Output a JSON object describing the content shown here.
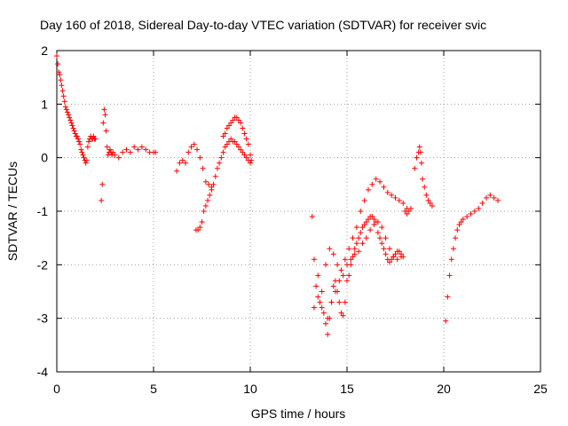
{
  "chart_data": {
    "type": "scatter",
    "title": "Day 160 of 2018, Sidereal Day-to-day VTEC variation (SDTVAR) for receiver svic",
    "xlabel": "GPS time / hours",
    "ylabel": "SDTVAR / TECUs",
    "xlim": [
      0,
      25
    ],
    "ylim": [
      -4,
      2
    ],
    "xticks": [
      "0",
      "5",
      "10",
      "15",
      "20",
      "25"
    ],
    "yticks": [
      "-4",
      "-3",
      "-2",
      "-1",
      "0",
      "1",
      "2"
    ],
    "grid": true,
    "marker": "+",
    "color": "#ff0000",
    "series": [
      {
        "name": "SDTVAR",
        "x": [
          0.0,
          0.05,
          0.1,
          0.15,
          0.2,
          0.25,
          0.3,
          0.35,
          0.4,
          0.45,
          0.5,
          0.55,
          0.6,
          0.65,
          0.7,
          0.75,
          0.8,
          0.85,
          0.9,
          0.95,
          1.0,
          1.05,
          1.1,
          1.15,
          1.2,
          1.25,
          1.3,
          1.35,
          1.4,
          1.45,
          1.5,
          1.55,
          1.6,
          1.65,
          1.7,
          1.75,
          1.8,
          1.85,
          1.9,
          1.95,
          2.0,
          2.3,
          2.35,
          2.4,
          2.45,
          2.5,
          2.55,
          2.6,
          2.65,
          2.7,
          2.75,
          2.8,
          2.85,
          2.9,
          3.0,
          3.2,
          3.4,
          3.6,
          3.8,
          4.0,
          4.2,
          4.4,
          4.6,
          4.8,
          5.0,
          5.1,
          6.2,
          6.35,
          6.5,
          6.65,
          6.8,
          6.95,
          7.1,
          7.25,
          7.4,
          7.55,
          7.7,
          7.85,
          8.0,
          7.2,
          7.3,
          7.4,
          7.5,
          7.6,
          7.7,
          7.8,
          7.9,
          8.0,
          8.1,
          8.2,
          8.3,
          8.4,
          8.5,
          8.6,
          8.7,
          8.8,
          8.9,
          9.0,
          9.1,
          9.2,
          9.3,
          9.4,
          9.5,
          9.6,
          9.7,
          9.8,
          9.9,
          10.0,
          10.05,
          8.6,
          8.7,
          8.8,
          8.9,
          9.0,
          9.1,
          9.2,
          9.3,
          9.4,
          9.5,
          9.6,
          9.7,
          9.8,
          9.9,
          10.0,
          13.2,
          13.3,
          13.4,
          13.5,
          13.6,
          13.7,
          13.8,
          13.9,
          14.0,
          14.1,
          14.2,
          14.3,
          14.4,
          14.5,
          14.6,
          14.7,
          14.8,
          14.9,
          15.0,
          15.1,
          15.2,
          15.3,
          15.4,
          15.5,
          15.6,
          15.7,
          15.8,
          15.9,
          16.0,
          16.1,
          16.2,
          16.3,
          16.4,
          16.5,
          16.6,
          16.7,
          16.8,
          16.9,
          17.0,
          17.1,
          17.2,
          17.3,
          17.4,
          17.5,
          17.6,
          17.7,
          17.8,
          17.9,
          18.0,
          18.1,
          18.2,
          18.3,
          13.3,
          13.5,
          13.7,
          13.9,
          14.1,
          14.3,
          14.5,
          14.7,
          14.9,
          15.1,
          15.3,
          15.5,
          15.7,
          15.9,
          16.1,
          16.3,
          16.5,
          16.7,
          16.9,
          17.1,
          17.3,
          17.5,
          17.7,
          17.9,
          18.1,
          14.0,
          14.2,
          14.4,
          14.6,
          14.8,
          15.0,
          15.2,
          15.4,
          15.6,
          15.8,
          16.0,
          16.2,
          16.4,
          16.6,
          16.8,
          17.0,
          17.2,
          17.4,
          17.6,
          17.8,
          18.5,
          18.6,
          18.7,
          18.75,
          18.8,
          18.85,
          18.9,
          19.0,
          19.1,
          19.2,
          19.3,
          19.4,
          20.1,
          20.2,
          20.3,
          20.4,
          20.5,
          20.6,
          20.7,
          20.8,
          20.9,
          21.0,
          21.2,
          21.4,
          21.6,
          21.8,
          22.0,
          22.2,
          22.4,
          22.6,
          22.8
        ],
        "y": [
          1.9,
          1.75,
          1.6,
          1.55,
          1.45,
          1.35,
          1.25,
          1.15,
          1.05,
          0.95,
          0.9,
          0.85,
          0.8,
          0.75,
          0.7,
          0.65,
          0.6,
          0.55,
          0.5,
          0.45,
          0.4,
          0.4,
          0.35,
          0.3,
          0.25,
          0.15,
          0.1,
          0.05,
          0.0,
          -0.05,
          -0.1,
          -0.05,
          0.2,
          0.3,
          0.35,
          0.4,
          0.35,
          0.35,
          0.4,
          0.35,
          0.35,
          -0.8,
          -0.5,
          0.65,
          0.9,
          0.8,
          0.5,
          0.2,
          0.05,
          0.1,
          0.15,
          0.1,
          0.05,
          0.1,
          0.05,
          0.0,
          0.1,
          0.15,
          0.1,
          0.2,
          0.15,
          0.2,
          0.15,
          0.1,
          0.1,
          0.1,
          -0.25,
          -0.1,
          -0.05,
          -0.1,
          0.1,
          0.2,
          0.25,
          0.15,
          0.0,
          -0.2,
          -0.45,
          -0.5,
          -0.55,
          -1.35,
          -1.35,
          -1.3,
          -1.2,
          -1.0,
          -0.9,
          -0.8,
          -0.7,
          -0.6,
          -0.5,
          -0.35,
          -0.2,
          -0.1,
          0.0,
          0.1,
          0.2,
          0.25,
          0.3,
          0.35,
          0.3,
          0.3,
          0.25,
          0.2,
          0.15,
          0.1,
          0.05,
          0.0,
          -0.05,
          -0.1,
          -0.05,
          0.4,
          0.45,
          0.55,
          0.6,
          0.65,
          0.7,
          0.75,
          0.75,
          0.7,
          0.65,
          0.55,
          0.45,
          0.35,
          0.25,
          0.05,
          -1.1,
          -1.9,
          -2.4,
          -2.6,
          -2.7,
          -2.8,
          -2.9,
          -3.1,
          -3.3,
          -3.0,
          -2.7,
          -2.4,
          -2.3,
          -2.5,
          -2.7,
          -2.9,
          -2.95,
          -2.7,
          -2.3,
          -2.2,
          -2.0,
          -1.85,
          -1.7,
          -1.6,
          -1.5,
          -1.4,
          -1.3,
          -1.25,
          -1.2,
          -1.15,
          -1.1,
          -1.1,
          -1.15,
          -1.2,
          -1.4,
          -1.5,
          -1.6,
          -1.7,
          -1.8,
          -1.9,
          -1.95,
          -1.9,
          -1.85,
          -1.8,
          -1.75,
          -1.75,
          -1.8,
          -1.85,
          -1.0,
          -1.05,
          -1.0,
          -0.95,
          -2.8,
          -2.2,
          -2.5,
          -2.0,
          -1.7,
          -1.8,
          -2.0,
          -2.1,
          -1.9,
          -1.7,
          -1.5,
          -1.3,
          -1.0,
          -0.8,
          -0.6,
          -0.5,
          -0.4,
          -0.45,
          -0.55,
          -0.65,
          -0.7,
          -0.75,
          -0.8,
          -0.85,
          -0.95,
          -3.0,
          -2.7,
          -2.5,
          -2.3,
          -2.2,
          -2.0,
          -1.9,
          -1.8,
          -1.75,
          -1.6,
          -1.5,
          -1.35,
          -1.25,
          -1.2,
          -1.3,
          -1.5,
          -1.7,
          -1.85,
          -1.9,
          -1.85,
          -0.2,
          0.0,
          0.1,
          0.2,
          0.1,
          -0.1,
          -0.4,
          -0.55,
          -0.7,
          -0.8,
          -0.85,
          -0.9,
          -3.05,
          -2.6,
          -2.2,
          -1.9,
          -1.7,
          -1.5,
          -1.35,
          -1.25,
          -1.2,
          -1.15,
          -1.1,
          -1.05,
          -1.0,
          -0.95,
          -0.85,
          -0.75,
          -0.7,
          -0.75,
          -0.8
        ]
      }
    ]
  }
}
